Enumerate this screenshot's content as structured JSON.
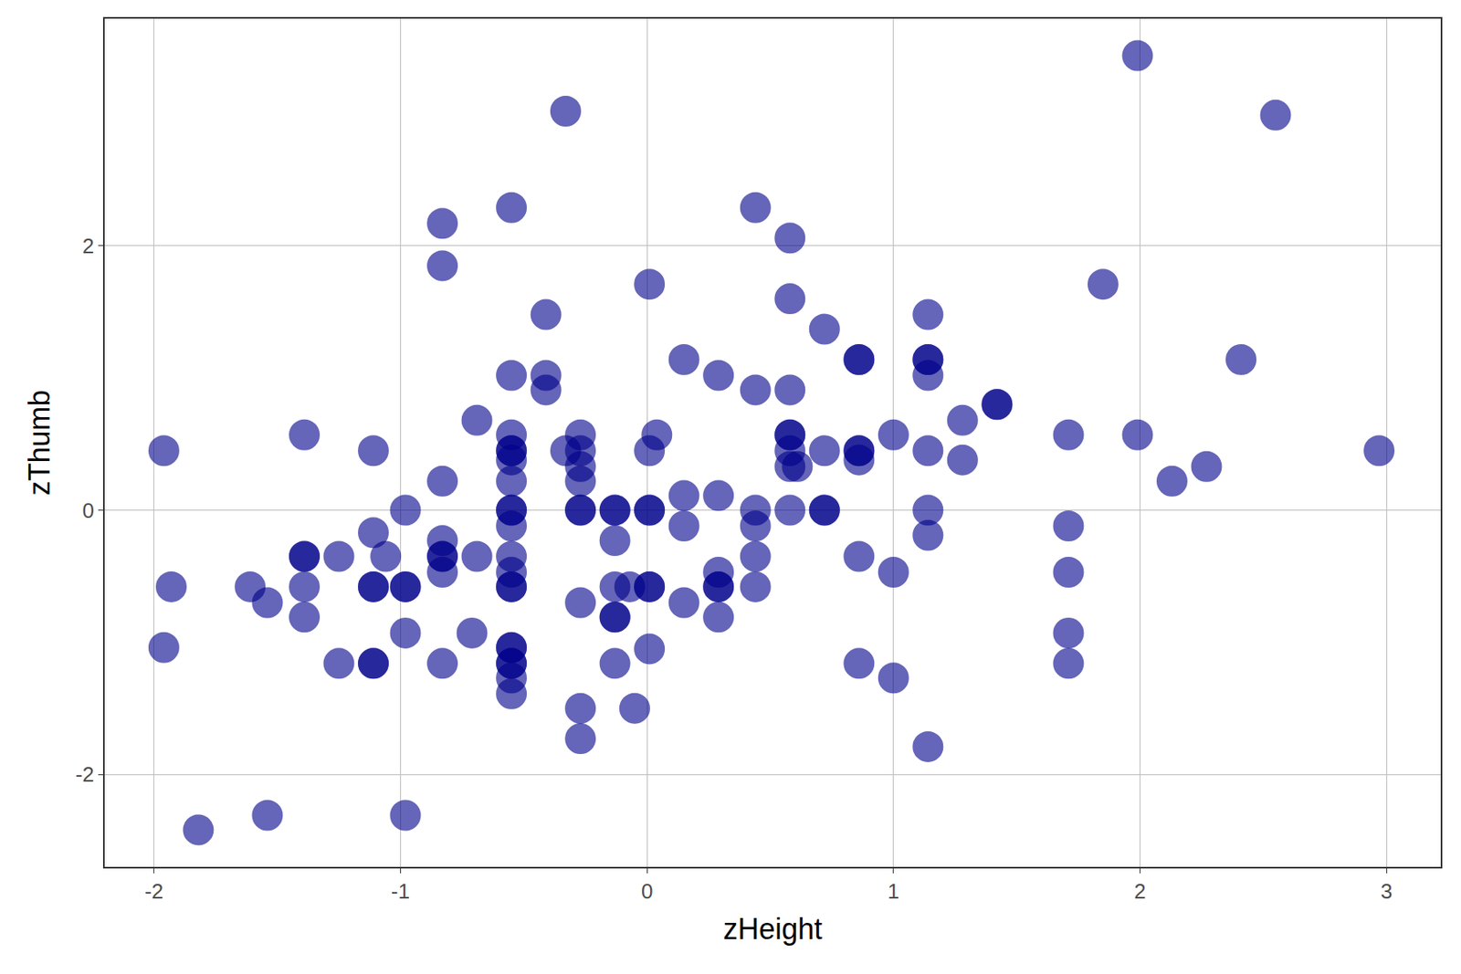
{
  "chart_data": {
    "type": "scatter",
    "x_label": "zHeight",
    "y_label": "zThumb",
    "color": "#00008b",
    "marker": "circle",
    "grid": true,
    "xlim": [
      -2.2,
      3.22
    ],
    "ylim": [
      -2.7,
      3.72
    ],
    "xticks": [
      -2,
      -1,
      0,
      1,
      2,
      3
    ],
    "yticks": [
      -2,
      0,
      2
    ],
    "x": [
      -1.96,
      -1.93,
      -1.96,
      -1.82,
      -1.61,
      -1.54,
      -1.54,
      -1.39,
      -1.39,
      -1.39,
      -1.39,
      -1.39,
      -1.25,
      -1.25,
      -1.11,
      -1.11,
      -1.11,
      -1.11,
      -1.11,
      -1.11,
      -1.06,
      -0.98,
      -0.98,
      -0.98,
      -0.98,
      -0.98,
      -0.83,
      -0.83,
      -0.83,
      -0.83,
      -0.83,
      -0.83,
      -0.83,
      -0.83,
      -0.69,
      -0.69,
      -0.71,
      -0.55,
      -0.55,
      -0.55,
      -0.55,
      -0.55,
      -0.55,
      -0.55,
      -0.55,
      -0.55,
      -0.55,
      -0.55,
      -0.55,
      -0.55,
      -0.55,
      -0.55,
      -0.55,
      -0.55,
      -0.55,
      -0.55,
      -0.55,
      -0.41,
      -0.41,
      -0.41,
      -0.33,
      -0.33,
      -0.27,
      -0.27,
      -0.27,
      -0.27,
      -0.27,
      -0.27,
      -0.27,
      -0.27,
      -0.27,
      -0.13,
      -0.13,
      -0.13,
      -0.13,
      -0.13,
      -0.13,
      -0.13,
      -0.07,
      -0.05,
      0.01,
      0.01,
      0.01,
      0.01,
      0.01,
      0.01,
      0.01,
      0.04,
      0.15,
      0.15,
      0.15,
      0.15,
      0.29,
      0.29,
      0.29,
      0.29,
      0.29,
      0.29,
      0.44,
      0.44,
      0.44,
      0.44,
      0.44,
      0.44,
      0.58,
      0.58,
      0.58,
      0.58,
      0.58,
      0.58,
      0.58,
      0.61,
      0.58,
      0.72,
      0.72,
      0.72,
      0.72,
      0.86,
      0.86,
      0.86,
      0.86,
      0.86,
      0.86,
      0.86,
      1.0,
      1.0,
      1.0,
      1.14,
      1.14,
      1.14,
      1.14,
      1.14,
      1.14,
      1.14,
      1.14,
      1.28,
      1.28,
      1.42,
      1.42,
      1.71,
      1.71,
      1.71,
      1.71,
      1.71,
      1.85,
      1.99,
      1.99,
      2.13,
      2.27,
      2.41,
      2.55,
      2.97
    ],
    "values": [
      0.45,
      -0.58,
      -1.04,
      -2.42,
      -0.58,
      -0.7,
      -2.31,
      0.57,
      -0.35,
      -0.35,
      -0.58,
      -0.81,
      -0.35,
      -1.16,
      0.45,
      -0.17,
      -0.58,
      -0.58,
      -1.16,
      -1.16,
      -0.35,
      0,
      -0.58,
      -0.58,
      -0.93,
      -2.31,
      2.17,
      1.85,
      0.22,
      -0.23,
      -0.35,
      -0.35,
      -0.47,
      -1.16,
      0.68,
      -0.35,
      -0.93,
      2.29,
      1.02,
      0.57,
      0.45,
      0.45,
      0.38,
      0.22,
      0,
      0,
      -0.12,
      -0.35,
      -0.47,
      -0.58,
      -0.58,
      -1.04,
      -1.04,
      -1.16,
      -1.16,
      -1.27,
      -1.39,
      1.48,
      1.02,
      0.91,
      3.02,
      0.45,
      0.57,
      0.45,
      0.33,
      0.22,
      0,
      0,
      -0.7,
      -1.5,
      -1.73,
      0,
      0,
      -0.23,
      -0.58,
      -0.81,
      -0.81,
      -1.16,
      -0.58,
      -1.5,
      1.71,
      0.45,
      0,
      0,
      -0.58,
      -0.58,
      -1.05,
      0.57,
      1.14,
      0.11,
      -0.12,
      -0.7,
      1.02,
      0.11,
      -0.47,
      -0.58,
      -0.58,
      -0.81,
      2.29,
      0.91,
      0,
      -0.12,
      -0.35,
      -0.58,
      2.06,
      1.6,
      0.91,
      0.57,
      0.57,
      0.45,
      0.33,
      0.33,
      0,
      1.37,
      0.45,
      0,
      0,
      1.14,
      1.14,
      0.45,
      0.45,
      0.38,
      -0.35,
      -1.16,
      0.57,
      -0.47,
      -1.27,
      1.48,
      1.14,
      1.14,
      1.02,
      0.45,
      0,
      -0.19,
      -1.79,
      0.68,
      0.38,
      0.8,
      0.8,
      0.57,
      -0.12,
      -0.47,
      -0.93,
      -1.16,
      1.71,
      3.44,
      0.57,
      0.22,
      0.33,
      1.14,
      2.99,
      0.45
    ]
  }
}
